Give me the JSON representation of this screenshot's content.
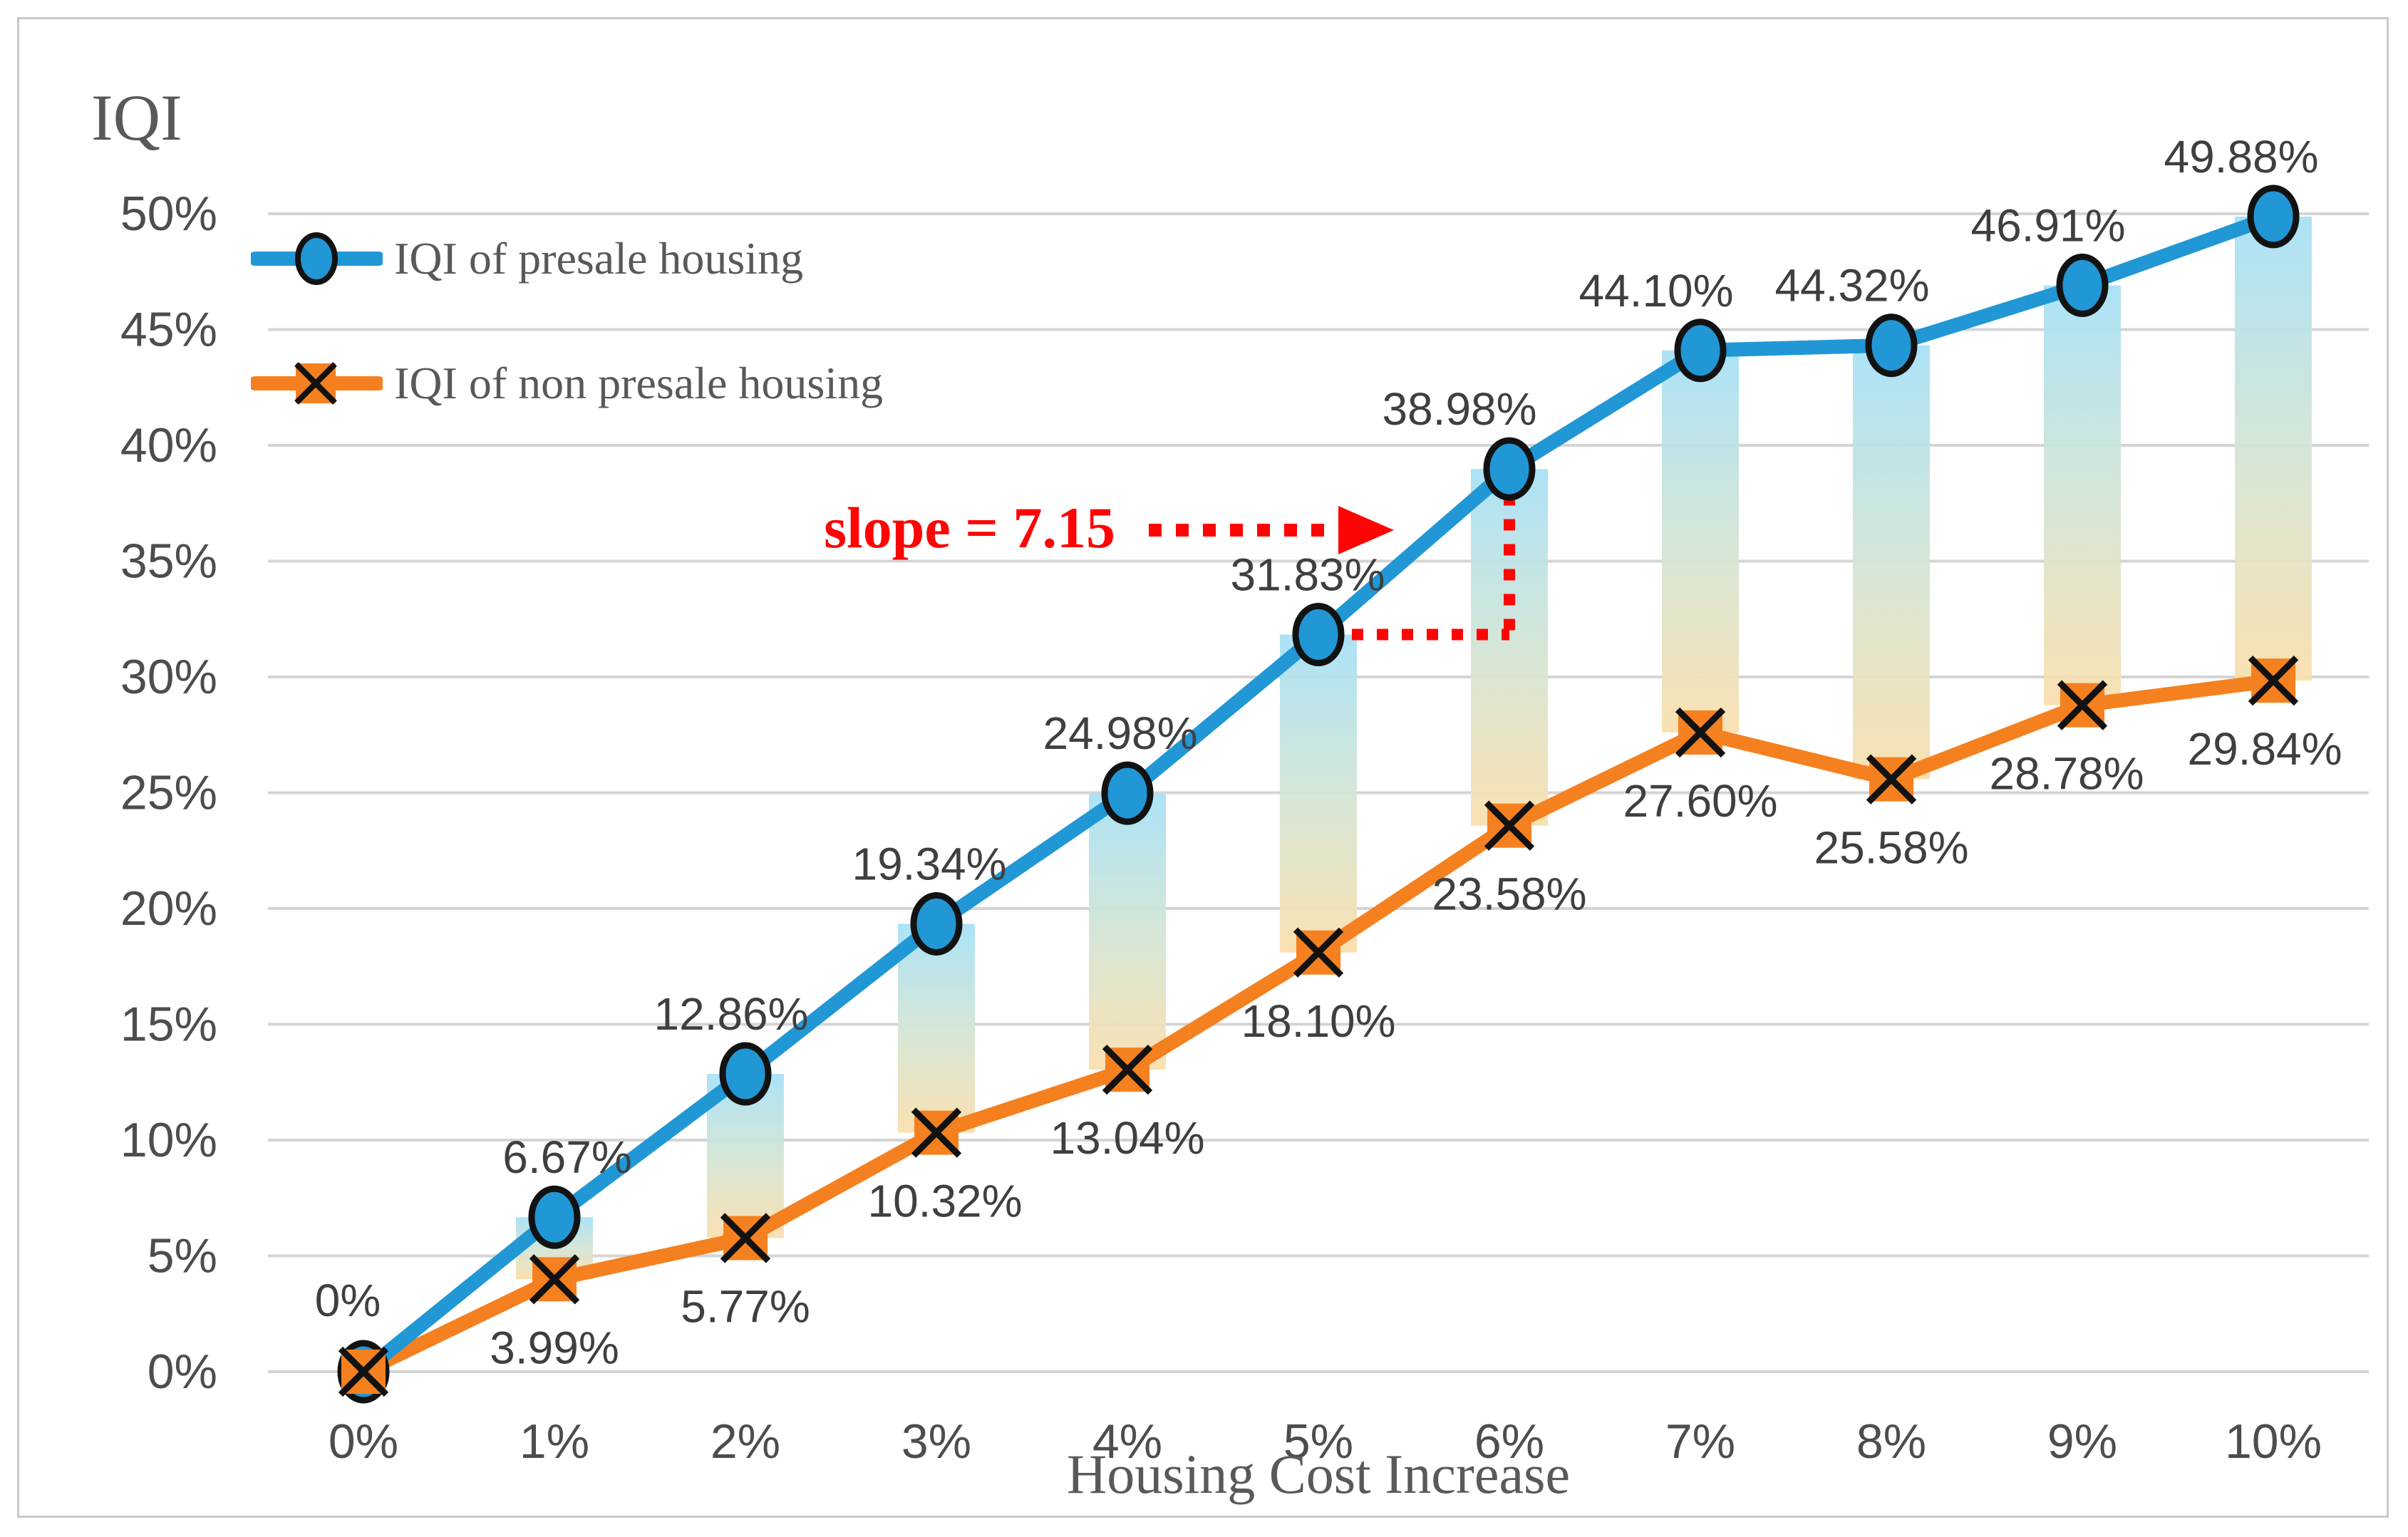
{
  "titles": {
    "y_axis": "IQI",
    "x_axis": "Housing Cost Increase"
  },
  "legend": {
    "items": [
      {
        "label": "IQI of presale housing",
        "marker": "circle",
        "color": "#2197d5"
      },
      {
        "label": "IQI of non presale housing",
        "marker": "x-square",
        "color": "#f5801f"
      }
    ]
  },
  "annotation": {
    "text": "slope = 7.15",
    "color": "#fe0505",
    "between_x_indices": [
      5,
      6
    ]
  },
  "chart_data": {
    "type": "line",
    "title": "",
    "xlabel": "Housing Cost Increase",
    "ylabel": "IQI",
    "x_tick_labels": [
      "0%",
      "1%",
      "2%",
      "3%",
      "4%",
      "5%",
      "6%",
      "7%",
      "8%",
      "9%",
      "10%"
    ],
    "x_values": [
      0,
      1,
      2,
      3,
      4,
      5,
      6,
      7,
      8,
      9,
      10
    ],
    "y_tick_labels": [
      "0%",
      "5%",
      "10%",
      "15%",
      "20%",
      "25%",
      "30%",
      "35%",
      "40%",
      "45%",
      "50%"
    ],
    "ylim": [
      0,
      50
    ],
    "grid": true,
    "legend_position": "upper-left-inside",
    "series": [
      {
        "name": "IQI of presale housing",
        "color": "#2197d5",
        "marker": "circle",
        "label_position": "above",
        "values": [
          0,
          6.67,
          12.86,
          19.34,
          24.98,
          31.83,
          38.98,
          44.1,
          44.32,
          46.91,
          49.88
        ],
        "data_labels": [
          "0%",
          "6.67%",
          "12.86%",
          "19.34%",
          "24.98%",
          "31.83%",
          "38.98%",
          "44.10%",
          "44.32%",
          "46.91%",
          "49.88%"
        ]
      },
      {
        "name": "IQI of non presale housing",
        "color": "#f5801f",
        "marker": "x-square",
        "label_position": "below",
        "values": [
          0,
          3.99,
          5.77,
          10.32,
          13.04,
          18.1,
          23.58,
          27.6,
          25.58,
          28.78,
          29.84
        ],
        "data_labels": [
          null,
          "3.99%",
          "5.77%",
          "10.32%",
          "13.04%",
          "18.10%",
          "23.58%",
          "27.60%",
          "25.58%",
          "28.78%",
          "29.84%"
        ]
      }
    ],
    "gap_bars": {
      "description": "vertical gradient bars between the two series at each x position",
      "gradient_top_color": "#a8e1f6",
      "gradient_mid_color": "#d7e5d2",
      "gradient_bottom_color": "#fadfae"
    },
    "annotation": {
      "text": "slope = 7.15",
      "between_x_indices": [
        5,
        6
      ]
    }
  },
  "style": {
    "grid_color": "#d4d4d4",
    "tick_label_color": "#4d4d4d",
    "data_label_color": "#3f3f3f",
    "axis_title_color": "#595959",
    "border_color": "#c9c9c9",
    "marker_outline_color": "#121212",
    "annotation_red": "#fe0505"
  }
}
